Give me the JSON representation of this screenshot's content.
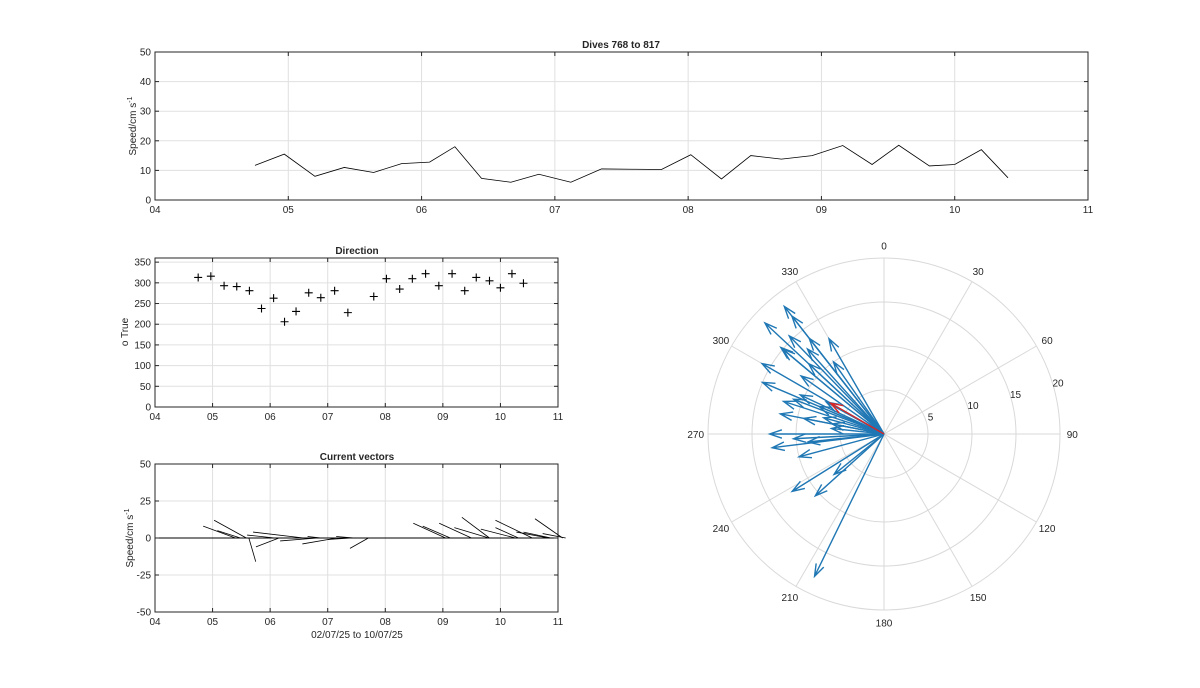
{
  "chart_data": [
    {
      "id": "speed",
      "type": "line",
      "title": "Dives 768 to 817",
      "ylabel": "Speed/cm s",
      "ylabel_sup": "-1",
      "xlabel": "",
      "xlim": [
        4,
        11
      ],
      "ylim": [
        0,
        50
      ],
      "xticks": [
        "04",
        "05",
        "06",
        "07",
        "08",
        "09",
        "10",
        "11"
      ],
      "yticks": [
        0,
        10,
        20,
        30,
        40,
        50
      ],
      "grid": true,
      "line_color": "#000000",
      "x": [
        4.75,
        4.97,
        5.2,
        5.42,
        5.64,
        5.85,
        6.06,
        6.25,
        6.45,
        6.67,
        6.88,
        7.12,
        7.35,
        7.58,
        7.8,
        8.02,
        8.25,
        8.47,
        8.7,
        8.93,
        9.16,
        9.38,
        9.58,
        9.81,
        10.0,
        10.2,
        10.4
      ],
      "values": [
        11.7,
        15.5,
        8.0,
        11.0,
        9.3,
        12.3,
        12.8,
        18.0,
        7.3,
        6.0,
        8.7,
        6.0,
        10.5,
        10.4,
        10.3,
        15.3,
        7.1,
        15.0,
        13.8,
        15.0,
        18.4,
        12.0,
        18.5,
        11.5,
        12.0,
        17.0,
        7.5
      ]
    },
    {
      "id": "direction",
      "type": "scatter",
      "title": "Direction",
      "ylabel": "o True",
      "xlabel": "",
      "xlim": [
        4,
        11
      ],
      "ylim": [
        0,
        360
      ],
      "xticks": [
        "04",
        "05",
        "06",
        "07",
        "08",
        "09",
        "10",
        "11"
      ],
      "yticks": [
        0,
        50,
        100,
        150,
        200,
        250,
        300,
        350
      ],
      "grid": true,
      "marker": "+",
      "marker_color": "#000000",
      "x": [
        4.75,
        4.97,
        5.2,
        5.42,
        5.64,
        5.85,
        6.06,
        6.25,
        6.45,
        6.67,
        6.88,
        7.12,
        7.35,
        7.8,
        8.02,
        8.25,
        8.47,
        8.7,
        8.93,
        9.16,
        9.38,
        9.58,
        9.81,
        10.0,
        10.2,
        10.4
      ],
      "values": [
        313,
        316,
        293,
        291,
        281,
        238,
        263,
        206,
        231,
        276,
        264,
        281,
        228,
        267,
        310,
        285,
        310,
        322,
        293,
        322,
        281,
        313,
        305,
        288,
        322,
        299
      ]
    },
    {
      "id": "vectors",
      "type": "line",
      "title": "Current vectors",
      "ylabel": "Speed/cm s",
      "ylabel_sup": "-1",
      "xlabel": "02/07/25 to 10/07/25",
      "xlim": [
        4,
        11
      ],
      "ylim": [
        -50,
        50
      ],
      "xticks": [
        "04",
        "05",
        "06",
        "07",
        "08",
        "09",
        "10",
        "11"
      ],
      "yticks": [
        -50,
        -25,
        0,
        25,
        50
      ],
      "grid": true,
      "line_color": "#000000",
      "x": [
        4.37,
        4.56,
        4.75,
        4.97,
        5.2,
        5.42,
        5.64,
        5.85,
        6.06,
        6.25,
        6.45,
        6.67,
        6.88,
        7.12,
        7.35,
        7.58,
        7.8,
        8.02,
        8.25,
        8.47,
        8.7,
        8.93,
        9.16,
        9.38,
        9.58,
        9.81,
        10.0,
        10.2,
        10.4
      ],
      "values": [
        8,
        12,
        5,
        4,
        2,
        -6,
        -2,
        -16,
        -4,
        0,
        1,
        -1,
        1,
        -7,
        0,
        0,
        0,
        10,
        8,
        10,
        7,
        14,
        6,
        12,
        7,
        4,
        4,
        13,
        3
      ],
      "u": [
        14,
        14,
        10,
        22,
        12,
        10,
        16,
        -3,
        15,
        10,
        6,
        10,
        8,
        8,
        5,
        6,
        12,
        14,
        12,
        14,
        15,
        12,
        15,
        16,
        10,
        14,
        12,
        12,
        10
      ],
      "v": [
        8,
        12,
        5,
        4,
        2,
        -6,
        -2,
        -16,
        -4,
        0,
        1,
        -1,
        1,
        -7,
        0,
        0,
        0,
        10,
        8,
        10,
        7,
        14,
        6,
        12,
        7,
        4,
        4,
        13,
        3
      ]
    },
    {
      "id": "compass",
      "type": "polar",
      "title": "",
      "angle_ticks": [
        "0",
        "30",
        "60",
        "90",
        "120",
        "150",
        "180",
        "210",
        "240",
        "270",
        "300",
        "330"
      ],
      "radius_ticks": [
        "5",
        "10",
        "15",
        "20"
      ],
      "rmax": 20,
      "direction_clockwise": true,
      "zero_at": "top",
      "arrow_color": "#1f77b4",
      "mean_color": "#d62728",
      "arrows": [
        {
          "angle": 313,
          "r": 11.7
        },
        {
          "angle": 316,
          "r": 15.5
        },
        {
          "angle": 293,
          "r": 8.0
        },
        {
          "angle": 291,
          "r": 11.0
        },
        {
          "angle": 281,
          "r": 9.3
        },
        {
          "angle": 238,
          "r": 12.3
        },
        {
          "angle": 263,
          "r": 12.8
        },
        {
          "angle": 206,
          "r": 18.0
        },
        {
          "angle": 231,
          "r": 7.3
        },
        {
          "angle": 276,
          "r": 6.0
        },
        {
          "angle": 264,
          "r": 8.7
        },
        {
          "angle": 281,
          "r": 6.0
        },
        {
          "angle": 228,
          "r": 10.5
        },
        {
          "angle": 267,
          "r": 10.3
        },
        {
          "angle": 310,
          "r": 15.3
        },
        {
          "angle": 285,
          "r": 7.1
        },
        {
          "angle": 310,
          "r": 15.0
        },
        {
          "angle": 322,
          "r": 13.8
        },
        {
          "angle": 293,
          "r": 15.0
        },
        {
          "angle": 322,
          "r": 18.4
        },
        {
          "angle": 281,
          "r": 12.0
        },
        {
          "angle": 313,
          "r": 18.5
        },
        {
          "angle": 305,
          "r": 11.5
        },
        {
          "angle": 288,
          "r": 12.0
        },
        {
          "angle": 322,
          "r": 17.0
        },
        {
          "angle": 299,
          "r": 7.5
        },
        {
          "angle": 330,
          "r": 12.5
        },
        {
          "angle": 300,
          "r": 16.0
        },
        {
          "angle": 270,
          "r": 13.0
        },
        {
          "angle": 255,
          "r": 10.0
        },
        {
          "angle": 318,
          "r": 13.0
        },
        {
          "angle": 295,
          "r": 10.5
        },
        {
          "angle": 325,
          "r": 10.0
        }
      ],
      "mean": {
        "angle": 300,
        "r": 7.0
      }
    }
  ]
}
